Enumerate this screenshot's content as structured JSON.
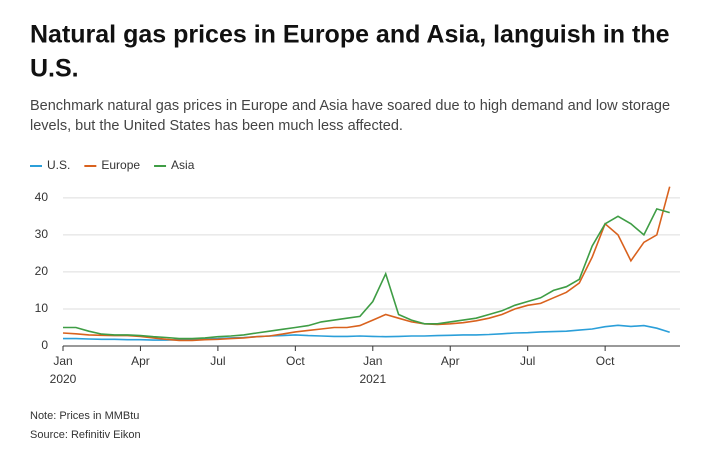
{
  "chart_data": {
    "type": "line",
    "title_lines": [
      "Natural gas prices in Europe and Asia, languish in the",
      "U.S."
    ],
    "subtitle_lines": [
      "Benchmark natural gas prices in Europe and Asia have soared due to high demand and low storage",
      "levels, but the United States has been much less affected."
    ],
    "notes": [
      "Note: Prices in MMBtu",
      "Source: Refinitiv Eikon"
    ],
    "x": [
      0,
      0.5,
      1,
      1.5,
      2,
      2.5,
      3,
      3.5,
      4,
      4.5,
      5,
      5.5,
      6,
      6.5,
      7,
      7.5,
      8,
      8.5,
      9,
      9.5,
      10,
      10.5,
      11,
      11.5,
      12,
      12.5,
      13,
      13.5,
      14,
      14.5,
      15,
      15.5,
      16,
      16.5,
      17,
      17.5,
      18,
      18.5,
      19,
      19.5,
      20,
      20.5,
      21,
      21.5,
      22,
      22.5,
      23,
      23.5
    ],
    "xlim": [
      0,
      23.9
    ],
    "xticks": [
      {
        "value": 0,
        "label": "Jan"
      },
      {
        "value": 3,
        "label": "Apr"
      },
      {
        "value": 6,
        "label": "Jul"
      },
      {
        "value": 9,
        "label": "Oct"
      },
      {
        "value": 12,
        "label": "Jan"
      },
      {
        "value": 15,
        "label": "Apr"
      },
      {
        "value": 18,
        "label": "Jul"
      },
      {
        "value": 21,
        "label": "Oct"
      }
    ],
    "year_labels": [
      {
        "value": 0,
        "label": "2020"
      },
      {
        "value": 12,
        "label": "2021"
      }
    ],
    "ylim": [
      0,
      44
    ],
    "yticks": [
      0,
      10,
      20,
      30,
      40
    ],
    "series": [
      {
        "name": "U.S.",
        "color": "#2b9fd9",
        "values": [
          2,
          2,
          1.9,
          1.8,
          1.8,
          1.7,
          1.7,
          1.6,
          1.6,
          1.7,
          1.8,
          1.9,
          2,
          2.2,
          2.3,
          2.5,
          2.7,
          2.8,
          3,
          2.8,
          2.7,
          2.6,
          2.6,
          2.7,
          2.6,
          2.5,
          2.6,
          2.7,
          2.7,
          2.8,
          2.9,
          3,
          3,
          3.1,
          3.3,
          3.5,
          3.6,
          3.8,
          3.9,
          4,
          4.3,
          4.6,
          5.2,
          5.6,
          5.3,
          5.5,
          4.8,
          3.7
        ]
      },
      {
        "name": "Europe",
        "color": "#d9621e",
        "values": [
          3.5,
          3.3,
          3,
          2.9,
          2.8,
          2.8,
          2.6,
          2.2,
          1.8,
          1.5,
          1.5,
          1.7,
          1.8,
          2,
          2.2,
          2.5,
          2.7,
          3.2,
          3.8,
          4.2,
          4.6,
          5,
          5,
          5.5,
          7,
          8.5,
          7.5,
          6.5,
          6,
          5.8,
          6,
          6.3,
          6.8,
          7.5,
          8.5,
          10,
          11,
          11.5,
          13,
          14.5,
          17,
          24,
          33,
          30,
          23,
          28,
          30,
          43
        ]
      },
      {
        "name": "Asia",
        "color": "#3f9d45",
        "values": [
          5,
          5,
          4,
          3.2,
          3,
          3,
          2.8,
          2.5,
          2.3,
          2,
          2,
          2.2,
          2.5,
          2.7,
          3,
          3.5,
          4,
          4.5,
          5,
          5.5,
          6.5,
          7,
          7.5,
          8,
          12,
          19.5,
          8.5,
          7,
          6,
          6,
          6.5,
          7,
          7.5,
          8.5,
          9.5,
          11,
          12,
          13,
          15,
          16,
          18,
          27,
          33,
          35,
          33,
          30,
          37,
          36
        ]
      }
    ]
  }
}
